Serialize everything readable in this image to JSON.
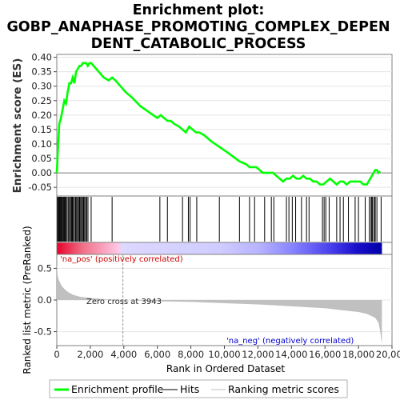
{
  "chart_data": {
    "type": "line",
    "title_lines": [
      "Enrichment plot:",
      "GOBP_ANAPHASE_PROMOTING_COMPLEX_DEPEN",
      "DENT_CATABOLIC_PROCESS"
    ],
    "top_panel": {
      "ylabel": "Enrichment score (ES)",
      "ylim": [
        -0.08,
        0.41
      ],
      "yticks": [
        "0.40",
        "0.35",
        "0.30",
        "0.25",
        "0.20",
        "0.15",
        "0.10",
        "0.05",
        "0.00",
        "-0.05"
      ],
      "ytick_values": [
        0.4,
        0.35,
        0.3,
        0.25,
        0.2,
        0.15,
        0.1,
        0.05,
        0.0,
        -0.05
      ],
      "series": [
        {
          "name": "Enrichment profile",
          "color": "#00ff00",
          "x": [
            0,
            80,
            150,
            250,
            350,
            450,
            550,
            650,
            750,
            850,
            950,
            1050,
            1150,
            1250,
            1350,
            1450,
            1550,
            1650,
            1750,
            1850,
            1950,
            2050,
            2200,
            2500,
            2800,
            3100,
            3300,
            3500,
            3800,
            4100,
            4500,
            5000,
            5500,
            6000,
            6200,
            6400,
            6600,
            6800,
            7000,
            7300,
            7500,
            7700,
            7900,
            8100,
            8300,
            8500,
            8800,
            9200,
            9700,
            10200,
            10900,
            11300,
            11500,
            11700,
            11900,
            12100,
            12300,
            12500,
            12700,
            12900,
            13100,
            13300,
            13500,
            13700,
            13900,
            14100,
            14300,
            14500,
            14700,
            14900,
            15100,
            15300,
            15500,
            15700,
            15900,
            16100,
            16300,
            16500,
            16700,
            16900,
            17100,
            17300,
            17500,
            17700,
            17900,
            18100,
            18300,
            18500,
            18700,
            18800,
            18900,
            19000,
            19100,
            19200,
            19300
          ],
          "y": [
            0.0,
            0.1,
            0.17,
            0.19,
            0.22,
            0.25,
            0.24,
            0.28,
            0.31,
            0.31,
            0.33,
            0.31,
            0.35,
            0.36,
            0.37,
            0.37,
            0.38,
            0.38,
            0.38,
            0.37,
            0.38,
            0.38,
            0.37,
            0.35,
            0.33,
            0.32,
            0.33,
            0.32,
            0.3,
            0.28,
            0.26,
            0.23,
            0.21,
            0.19,
            0.2,
            0.19,
            0.18,
            0.18,
            0.17,
            0.16,
            0.15,
            0.14,
            0.16,
            0.15,
            0.14,
            0.14,
            0.13,
            0.11,
            0.09,
            0.07,
            0.04,
            0.03,
            0.02,
            0.02,
            0.02,
            0.01,
            0.0,
            0.0,
            0.0,
            0.0,
            -0.01,
            -0.02,
            -0.03,
            -0.02,
            -0.02,
            -0.01,
            -0.02,
            -0.02,
            -0.01,
            -0.02,
            -0.02,
            -0.03,
            -0.03,
            -0.04,
            -0.04,
            -0.03,
            -0.02,
            -0.03,
            -0.04,
            -0.03,
            -0.03,
            -0.04,
            -0.03,
            -0.03,
            -0.03,
            -0.03,
            -0.04,
            -0.04,
            -0.02,
            -0.01,
            0.0,
            0.01,
            0.01,
            0.0,
            0.005
          ]
        }
      ]
    },
    "hits": {
      "name": "Hits",
      "positions": [
        40,
        90,
        130,
        170,
        210,
        260,
        300,
        350,
        400,
        450,
        500,
        560,
        620,
        700,
        760,
        820,
        880,
        930,
        990,
        1050,
        1120,
        1180,
        1240,
        1300,
        1360,
        1420,
        1480,
        1540,
        1600,
        1660,
        1720,
        1790,
        1860,
        2050,
        3300,
        6150,
        6600,
        7500,
        7850,
        7950,
        8350,
        9700,
        10900,
        11500,
        11800,
        12400,
        12800,
        12950,
        13700,
        13850,
        14050,
        14250,
        14600,
        14900,
        15050,
        15850,
        15950,
        16050,
        16250,
        16700,
        16900,
        17100,
        17400,
        17800,
        18000,
        18400,
        18650,
        18750,
        18800,
        18850,
        18950,
        19000,
        19100,
        19350
      ]
    },
    "ranked_panel": {
      "ylabel": "Ranked list metric (PreRanked)",
      "ylim": [
        -0.72,
        0.72
      ],
      "yticks": [
        "0.5",
        "0.0",
        "-0.5"
      ],
      "ytick_values": [
        0.5,
        0.0,
        -0.5
      ],
      "zero_cross": 3943,
      "zero_cross_label": "Zero cross at 3943",
      "pos_label": "'na_pos' (positively correlated)",
      "neg_label": "'na_neg' (negatively correlated)",
      "metric": {
        "name": "Ranking metric scores",
        "color": "#c0c0c0",
        "x": [
          0,
          50,
          100,
          200,
          300,
          500,
          700,
          1000,
          1400,
          2000,
          3000,
          3943,
          6000,
          8000,
          10000,
          12000,
          14000,
          16000,
          17000,
          18000,
          18500,
          19000,
          19200,
          19300,
          19400
        ],
        "y": [
          0.55,
          0.4,
          0.33,
          0.27,
          0.22,
          0.16,
          0.12,
          0.08,
          0.05,
          0.03,
          0.01,
          0.0,
          -0.02,
          -0.03,
          -0.05,
          -0.07,
          -0.1,
          -0.13,
          -0.16,
          -0.19,
          -0.22,
          -0.28,
          -0.36,
          -0.5,
          -0.7
        ]
      }
    },
    "xlabel": "Rank in Ordered Dataset",
    "xlim": [
      0,
      20000
    ],
    "xticks": [
      "0",
      "2,000",
      "4,000",
      "6,000",
      "8,000",
      "10,000",
      "12,000",
      "14,000",
      "16,000",
      "18,000",
      "20,000"
    ],
    "xtick_values": [
      0,
      2000,
      4000,
      6000,
      8000,
      10000,
      12000,
      14000,
      16000,
      18000,
      20000
    ],
    "n_genes": 19400,
    "legend": {
      "placement": "bottom",
      "entries": [
        {
          "label": "Enrichment profile",
          "color": "#00ff00",
          "style": "thick-line"
        },
        {
          "label": "Hits",
          "color": "#000000",
          "style": "line"
        },
        {
          "label": "Ranking metric scores",
          "color": "#c0c0c0",
          "style": "line"
        }
      ]
    },
    "colors": {
      "pos_text": "#cc0000",
      "neg_text": "#0000cc",
      "zero_line": "#808080",
      "panel_border": "#808080"
    }
  }
}
